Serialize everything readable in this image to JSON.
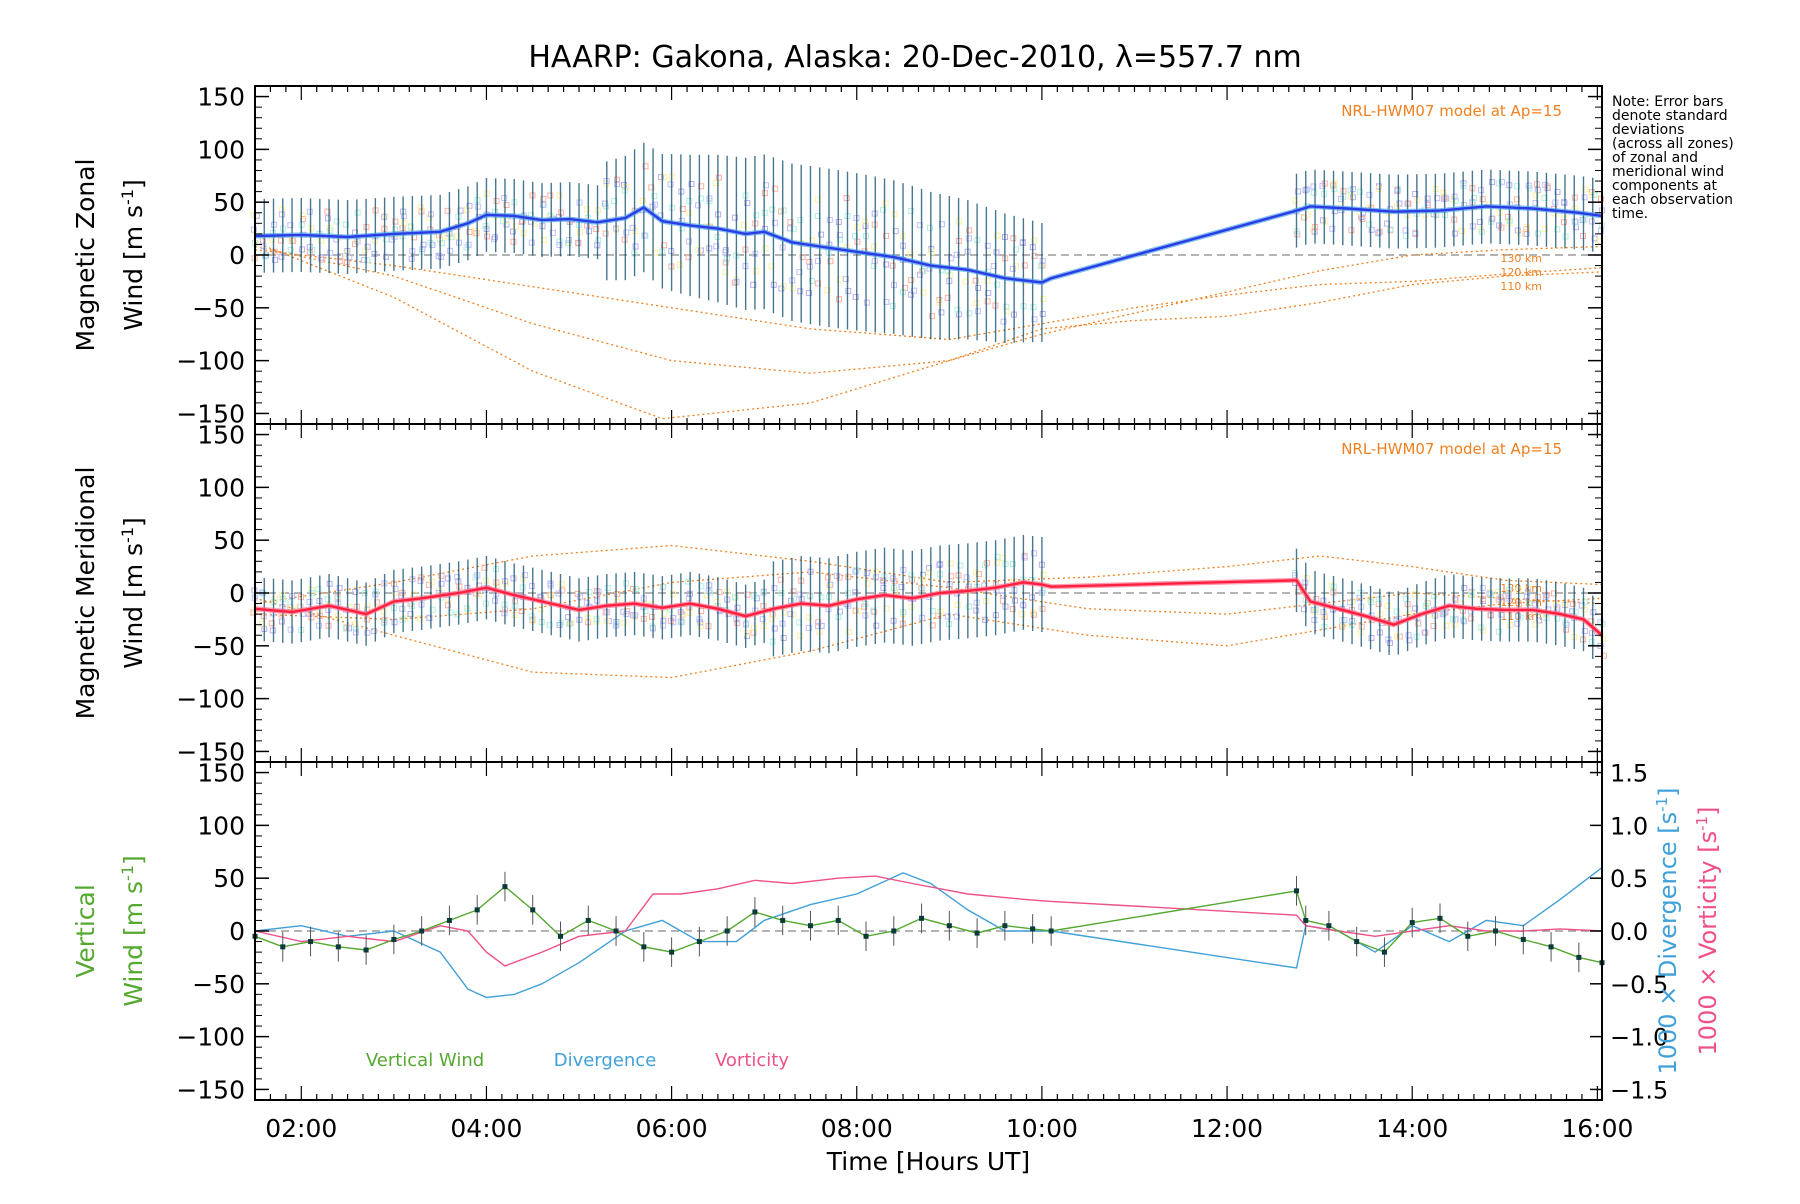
{
  "chart_data": {
    "type": "line",
    "title": "HAARP: Gakona,  Alaska: 20-Dec-2010, λ=557.7 nm",
    "xlabel": "Time [Hours UT]",
    "x_ticks": [
      "02:00",
      "04:00",
      "06:00",
      "08:00",
      "10:00",
      "12:00",
      "14:00",
      "16:00"
    ],
    "xlim_hours": [
      1.5,
      16.05
    ],
    "y_ticks": [
      "150",
      "100",
      "50",
      "0",
      "−50",
      "−100",
      "−150"
    ],
    "ylim": [
      -160,
      160
    ],
    "note": "Note: Error bars\ndenote standard\ndeviations\n(across all zones)\nof zonal and\nmeridional wind\ncomponents at\neach observation\ntime.",
    "colors": {
      "zonal": "#2b3be6",
      "zonal_light": "#4aa3e8",
      "meridional": "#ff2040",
      "meridional_light": "#ff7090",
      "model": "#f08020",
      "errorbar": "#0a4a6a",
      "scatter": "#9a9ae0",
      "vertical": "#55a830",
      "divergence": "#40a0d8",
      "vorticity": "#f0508a",
      "zero_line": "#888888"
    },
    "panels": [
      {
        "name": "zonal",
        "ylabel_line1": "Magnetic Zonal",
        "ylabel_line2": "Wind [m s",
        "ylabel_sup": "-1",
        "ylabel_end": "]",
        "model_label": "NRL-HWM07 model at Ap=15",
        "model_alts": [
          "130 km",
          "120 km",
          "110 km"
        ],
        "series": [
          {
            "x": [
              1.5,
              2.0,
              2.5,
              3.0,
              3.5,
              3.8,
              4.0,
              4.3,
              4.6,
              4.9,
              5.2,
              5.5,
              5.7,
              5.9,
              6.2,
              6.5,
              6.8,
              7.0,
              7.3,
              7.6,
              8.0,
              8.4,
              8.8,
              9.2,
              9.6,
              10.0,
              10.1,
              12.75,
              12.9,
              13.3,
              13.8,
              14.3,
              14.8,
              15.3,
              15.8,
              16.05
            ],
            "values": [
              18,
              19,
              17,
              20,
              22,
              30,
              38,
              37,
              33,
              34,
              31,
              35,
              45,
              32,
              28,
              25,
              20,
              22,
              12,
              8,
              3,
              -2,
              -10,
              -14,
              -22,
              -26,
              -22,
              42,
              46,
              44,
              41,
              42,
              46,
              44,
              40,
              37
            ]
          }
        ],
        "models": [
          {
            "x": [
              1.5,
              3,
              4.5,
              5.9,
              7.5,
              9,
              10,
              11,
              12,
              13,
              14,
              15,
              16.05
            ],
            "values": [
              12,
              -40,
              -110,
              -155,
              -140,
              -100,
              -70,
              -62,
              -58,
              -45,
              -28,
              -20,
              -16
            ]
          },
          {
            "x": [
              1.5,
              3,
              4.5,
              6,
              7.5,
              9,
              10,
              11,
              12,
              13,
              14,
              15,
              16.05
            ],
            "values": [
              8,
              -20,
              -65,
              -100,
              -112,
              -100,
              -75,
              -55,
              -35,
              -15,
              0,
              5,
              8
            ]
          },
          {
            "x": [
              1.5,
              3,
              4.5,
              6,
              7.5,
              9,
              10,
              11,
              12,
              13,
              14,
              15,
              16.05
            ],
            "values": [
              5,
              -10,
              -30,
              -50,
              -70,
              -80,
              -65,
              -50,
              -38,
              -28,
              -25,
              -18,
              -12
            ]
          }
        ]
      },
      {
        "name": "meridional",
        "ylabel_line1": "Magnetic Meridional",
        "ylabel_line2": "Wind [m s",
        "ylabel_sup": "-1",
        "ylabel_end": "]",
        "model_label": "NRL-HWM07 model at Ap=15",
        "model_alts": [
          "130 km",
          "120 km",
          "110 km"
        ],
        "series": [
          {
            "x": [
              1.5,
              1.9,
              2.3,
              2.7,
              3.0,
              3.3,
              3.7,
              4.0,
              4.3,
              4.6,
              5.0,
              5.3,
              5.6,
              5.9,
              6.2,
              6.5,
              6.8,
              7.1,
              7.4,
              7.7,
              8.0,
              8.3,
              8.6,
              8.9,
              9.2,
              9.5,
              9.8,
              10.0,
              10.1,
              12.75,
              12.9,
              13.2,
              13.5,
              13.8,
              14.1,
              14.4,
              14.7,
              15.0,
              15.3,
              15.6,
              15.85,
              16.05
            ],
            "values": [
              -15,
              -18,
              -12,
              -20,
              -8,
              -5,
              0,
              5,
              -2,
              -8,
              -16,
              -12,
              -10,
              -14,
              -10,
              -15,
              -22,
              -15,
              -10,
              -12,
              -6,
              -2,
              -5,
              0,
              2,
              5,
              10,
              8,
              6,
              12,
              -8,
              -15,
              -22,
              -30,
              -20,
              -12,
              -15,
              -16,
              -16,
              -20,
              -25,
              -40
            ]
          }
        ],
        "models": [
          {
            "x": [
              1.5,
              3,
              4.5,
              6,
              7.5,
              9,
              10.5,
              12,
              13,
              14,
              15,
              16.05
            ],
            "values": [
              -5,
              -40,
              -75,
              -80,
              -55,
              -20,
              -40,
              -50,
              -35,
              -20,
              -10,
              -5
            ]
          },
          {
            "x": [
              1.5,
              3,
              4.5,
              6,
              7.5,
              9,
              10.5,
              12,
              13,
              14,
              15,
              16.05
            ],
            "values": [
              -10,
              10,
              35,
              45,
              30,
              10,
              15,
              25,
              35,
              25,
              12,
              8
            ]
          },
          {
            "x": [
              1.5,
              3,
              4.5,
              6,
              7.5,
              9,
              10.5,
              12,
              13,
              14,
              15,
              16.05
            ],
            "values": [
              -20,
              -25,
              -15,
              10,
              20,
              5,
              -15,
              -20,
              -10,
              0,
              -5,
              -10
            ]
          }
        ]
      },
      {
        "name": "vertical",
        "ylabel_line1": "Vertical",
        "ylabel_line2": "Wind [m s",
        "ylabel_sup": "-1",
        "ylabel_end": "]",
        "right_ticks": [
          "1.5",
          "1.0",
          "0.5",
          "0.0",
          "−0.5",
          "−1.0",
          "−1.5"
        ],
        "right_label_divergence": "1000 × Divergence [s",
        "right_label_vorticity": "1000 × Vorticity [s",
        "right_label_sup": "-1",
        "right_label_end": "]",
        "legend": [
          "Vertical Wind",
          "Divergence",
          "Vorticity"
        ],
        "series": [
          {
            "name": "Vertical Wind",
            "x": [
              1.5,
              1.8,
              2.1,
              2.4,
              2.7,
              3.0,
              3.3,
              3.6,
              3.9,
              4.2,
              4.5,
              4.8,
              5.1,
              5.4,
              5.7,
              6.0,
              6.3,
              6.6,
              6.9,
              7.2,
              7.5,
              7.8,
              8.1,
              8.4,
              8.7,
              9.0,
              9.3,
              9.6,
              9.9,
              10.1,
              12.75,
              12.85,
              13.1,
              13.4,
              13.7,
              14.0,
              14.3,
              14.6,
              14.9,
              15.2,
              15.5,
              15.8,
              16.05
            ],
            "values": [
              -5,
              -15,
              -10,
              -15,
              -18,
              -8,
              0,
              10,
              20,
              42,
              20,
              -5,
              10,
              0,
              -15,
              -20,
              -10,
              0,
              18,
              10,
              5,
              10,
              -5,
              0,
              12,
              5,
              -2,
              5,
              2,
              0,
              38,
              10,
              5,
              -10,
              -20,
              8,
              12,
              -5,
              0,
              -8,
              -15,
              -25,
              -30
            ]
          },
          {
            "name": "Divergence",
            "x": [
              1.5,
              2.0,
              2.5,
              3.0,
              3.5,
              3.8,
              4.0,
              4.3,
              4.6,
              5.0,
              5.5,
              5.9,
              6.3,
              6.7,
              7.0,
              7.5,
              8.0,
              8.5,
              8.8,
              9.2,
              9.6,
              10.1,
              12.75,
              12.85,
              13.2,
              13.6,
              14.0,
              14.4,
              14.8,
              15.2,
              15.6,
              16.05
            ],
            "values": [
              0.0,
              0.05,
              -0.05,
              0.0,
              -0.2,
              -0.55,
              -0.63,
              -0.6,
              -0.5,
              -0.3,
              0.0,
              0.1,
              -0.1,
              -0.1,
              0.1,
              0.25,
              0.35,
              0.55,
              0.45,
              0.2,
              0.0,
              0.0,
              -0.35,
              0.05,
              0.0,
              -0.2,
              0.05,
              -0.1,
              0.1,
              0.05,
              0.3,
              0.6
            ]
          },
          {
            "name": "Vorticity",
            "x": [
              1.5,
              2.0,
              2.5,
              3.0,
              3.5,
              3.8,
              4.0,
              4.2,
              4.6,
              5.0,
              5.5,
              5.8,
              6.1,
              6.5,
              6.9,
              7.3,
              7.8,
              8.2,
              8.6,
              9.2,
              9.8,
              10.1,
              12.75,
              12.85,
              13.2,
              13.6,
              14.0,
              14.4,
              14.8,
              15.2,
              15.6,
              16.05
            ],
            "values": [
              0.0,
              -0.1,
              -0.05,
              -0.1,
              0.05,
              0.0,
              -0.2,
              -0.33,
              -0.2,
              -0.05,
              0.0,
              0.35,
              0.35,
              0.4,
              0.48,
              0.45,
              0.5,
              0.52,
              0.45,
              0.35,
              0.3,
              0.28,
              0.15,
              0.05,
              0.0,
              -0.05,
              0.0,
              0.05,
              0.0,
              0.0,
              0.02,
              0.0
            ]
          }
        ]
      }
    ]
  }
}
